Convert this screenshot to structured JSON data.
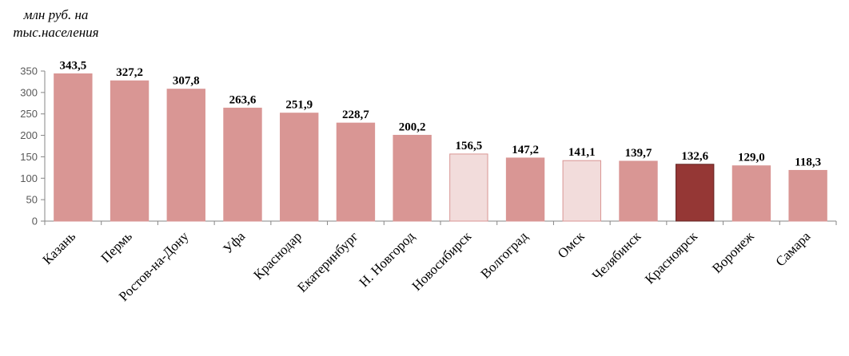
{
  "chart_data": {
    "type": "bar",
    "title": "",
    "ylabel_lines": [
      "млн руб. на",
      "тыс.населения"
    ],
    "xlabel": "",
    "ylim": [
      0,
      350
    ],
    "yticks": [
      0,
      50,
      100,
      150,
      200,
      250,
      300,
      350
    ],
    "grid": false,
    "legend": "none",
    "categories": [
      "Казань",
      "Пермь",
      "Ростов-на-Дону",
      "Уфа",
      "Краснодар",
      "Екатеринбург",
      "Н. Новгород",
      "Новосибирск",
      "Волгоград",
      "Омск",
      "Челябинск",
      "Красноярск",
      "Воронеж",
      "Самара"
    ],
    "values": [
      343.5,
      327.2,
      307.8,
      263.6,
      251.9,
      228.7,
      200.2,
      156.5,
      147.2,
      141.1,
      139.7,
      132.6,
      129.0,
      118.3
    ],
    "data_labels": [
      "343,5",
      "327,2",
      "307,8",
      "263,6",
      "251,9",
      "228,7",
      "200,2",
      "156,5",
      "147,2",
      "141,1",
      "139,7",
      "132,6",
      "129,0",
      "118,3"
    ],
    "bar_colors": [
      "#D99694",
      "#D99694",
      "#D99694",
      "#D99694",
      "#D99694",
      "#D99694",
      "#D99694",
      "#F2DCDB",
      "#D99694",
      "#F2DCDB",
      "#D99694",
      "#953735",
      "#D99694",
      "#D99694"
    ],
    "bar_outline_colors": [
      "#D99694",
      "#D99694",
      "#D99694",
      "#D99694",
      "#D99694",
      "#D99694",
      "#D99694",
      "#D99694",
      "#D99694",
      "#D99694",
      "#D99694",
      "#632423",
      "#D99694",
      "#D99694"
    ]
  }
}
